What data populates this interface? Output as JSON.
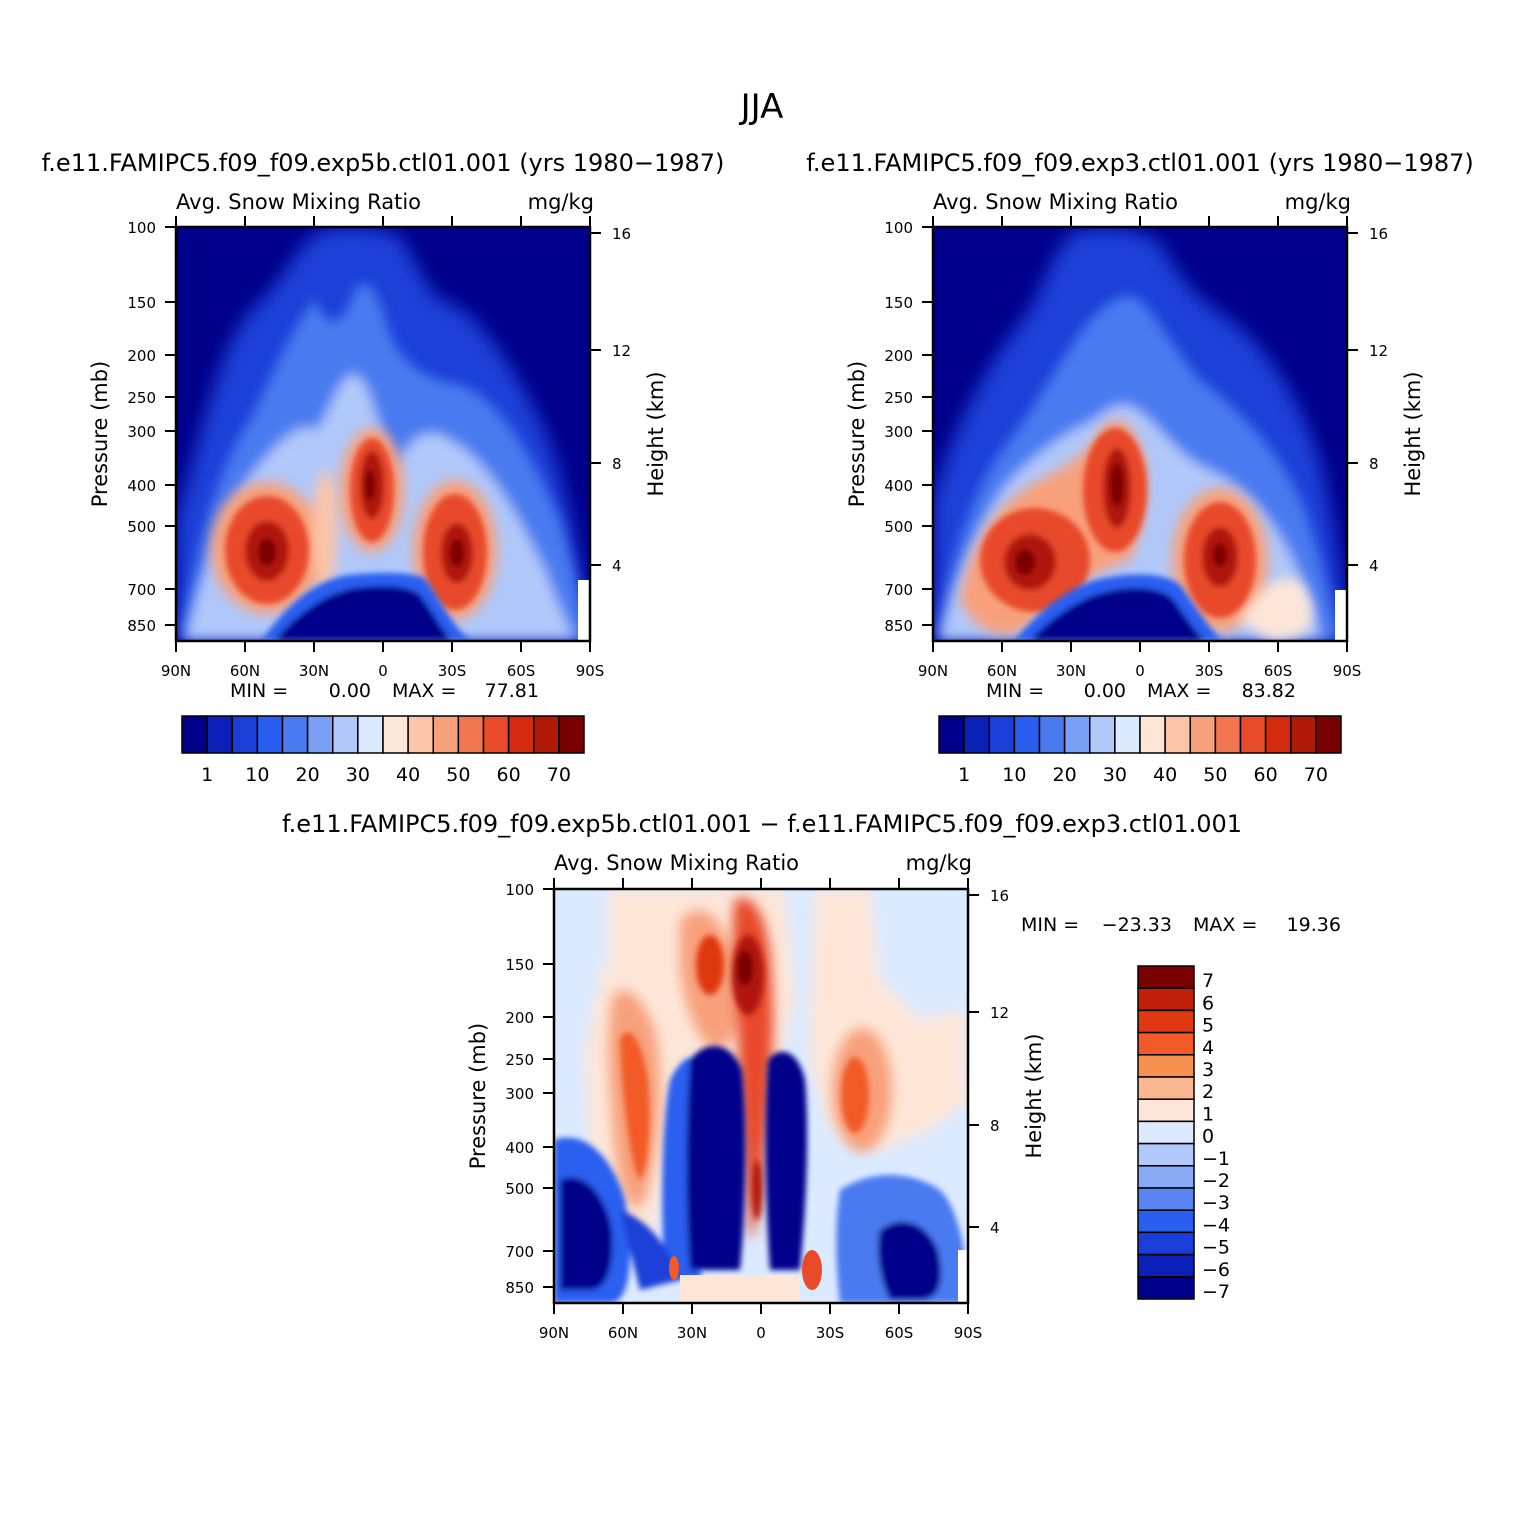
{
  "figure_title": "JJA",
  "difference_title": "f.e11.FAMIPC5.f09_f09.exp5b.ctl01.001 − f.e11.FAMIPC5.f09_f09.exp3.ctl01.001",
  "chart_data": [
    {
      "type": "heatmap",
      "case_title": "f.e11.FAMIPC5.f09_f09.exp5b.ctl01.001 (yrs 1980−1987)",
      "field_label": "Avg. Snow Mixing Ratio",
      "units": "mg/kg",
      "xlabel": "",
      "ylabel": "Pressure (mb)",
      "y2label": "Height (km)",
      "x_ticks": [
        "90N",
        "60N",
        "30N",
        "0",
        "30S",
        "60S",
        "90S"
      ],
      "y_ticks": [
        "100",
        "150",
        "200",
        "250",
        "300",
        "400",
        "500",
        "700",
        "850"
      ],
      "y2_ticks": [
        "16",
        "12",
        "8",
        "4"
      ],
      "min_label": "MIN =",
      "min_value": "0.00",
      "max_label": "MAX =",
      "max_value": "77.81",
      "colorbar_labels": [
        "1",
        "10",
        "20",
        "30",
        "40",
        "50",
        "60",
        "70"
      ]
    },
    {
      "type": "heatmap",
      "case_title": "f.e11.FAMIPC5.f09_f09.exp3.ctl01.001 (yrs 1980−1987)",
      "field_label": "Avg. Snow Mixing Ratio",
      "units": "mg/kg",
      "xlabel": "",
      "ylabel": "Pressure (mb)",
      "y2label": "Height (km)",
      "x_ticks": [
        "90N",
        "60N",
        "30N",
        "0",
        "30S",
        "60S",
        "90S"
      ],
      "y_ticks": [
        "100",
        "150",
        "200",
        "250",
        "300",
        "400",
        "500",
        "700",
        "850"
      ],
      "y2_ticks": [
        "16",
        "12",
        "8",
        "4"
      ],
      "min_label": "MIN =",
      "min_value": "0.00",
      "max_label": "MAX =",
      "max_value": "83.82",
      "colorbar_labels": [
        "1",
        "10",
        "20",
        "30",
        "40",
        "50",
        "60",
        "70"
      ]
    },
    {
      "type": "heatmap",
      "field_label": "Avg. Snow Mixing Ratio",
      "units": "mg/kg",
      "xlabel": "",
      "ylabel": "Pressure (mb)",
      "y2label": "Height (km)",
      "x_ticks": [
        "90N",
        "60N",
        "30N",
        "0",
        "30S",
        "60S",
        "90S"
      ],
      "y_ticks": [
        "100",
        "150",
        "200",
        "250",
        "300",
        "400",
        "500",
        "700",
        "850"
      ],
      "y2_ticks": [
        "16",
        "12",
        "8",
        "4"
      ],
      "min_label": "MIN =",
      "min_value": "−23.33",
      "max_label": "MAX =",
      "max_value": "19.36",
      "colorbar_labels": [
        "7",
        "6",
        "5",
        "4",
        "3",
        "2",
        "1",
        "0",
        "−1",
        "−2",
        "−3",
        "−4",
        "−5",
        "−6",
        "−7"
      ]
    }
  ],
  "palettes": {
    "sequential": [
      "#00008b",
      "#0a20b8",
      "#1a3fd8",
      "#2a5ef0",
      "#4a7af0",
      "#7aa0f5",
      "#b0c8fa",
      "#dceaff",
      "#fde6d8",
      "#fcc5a8",
      "#f8a07c",
      "#f27650",
      "#e84a2a",
      "#d42a0e",
      "#b01808",
      "#7a0000"
    ],
    "diverging": [
      "#7a0000",
      "#c02008",
      "#e03810",
      "#f25a28",
      "#f8904f",
      "#fbb790",
      "#fde6d8",
      "#dceaff",
      "#b0c8fa",
      "#8aaaf6",
      "#5a84f2",
      "#2a5ef0",
      "#1a3fd8",
      "#0a20b8",
      "#00008b"
    ]
  }
}
